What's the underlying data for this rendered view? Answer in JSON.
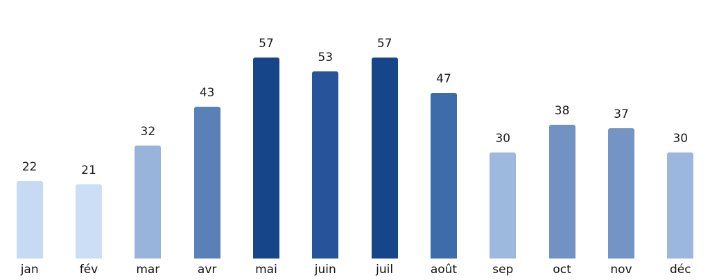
{
  "chart_data": {
    "type": "bar",
    "title": "",
    "xlabel": "",
    "ylabel": "",
    "categories": [
      "jan",
      "fév",
      "mar",
      "avr",
      "mai",
      "juin",
      "juil",
      "août",
      "sep",
      "oct",
      "nov",
      "déc"
    ],
    "values": [
      22,
      21,
      32,
      43,
      57,
      53,
      57,
      47,
      30,
      38,
      37,
      30
    ],
    "bar_colors": [
      "#c7daf3",
      "#ccdef6",
      "#99b4db",
      "#5a80b8",
      "#17458a",
      "#27539b",
      "#17458a",
      "#3e6cab",
      "#9dbade",
      "#7292c4",
      "#7594c6",
      "#9cb7de"
    ],
    "value_labels_shown": true,
    "legend": "none",
    "grid": false,
    "axes_visible": false,
    "ylim": [
      0,
      60
    ],
    "background_color": "#ffffff",
    "label_text_color": "#1a1a1a"
  }
}
